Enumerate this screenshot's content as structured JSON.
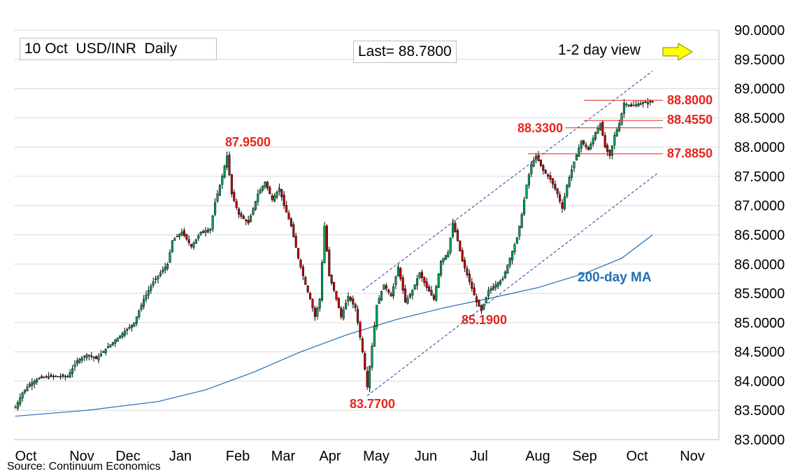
{
  "header": {
    "title": "10 Oct  USD/INR  Daily",
    "last": "Last= 88.7800",
    "view": "1-2 day view"
  },
  "source": "Source: Continuum Economics",
  "colors": {
    "up": "#00a65a",
    "down": "#c00000",
    "ma": "#1f6fb6",
    "channel": "#1f3f9f",
    "levels": "#e8241c",
    "arrow": "#ffff00",
    "grid": "#d9d9d9"
  },
  "icons": {
    "view_arrow": "right-arrow-icon"
  },
  "chart_data": {
    "type": "candlestick",
    "title": "10 Oct  USD/INR  Daily",
    "ylim": [
      83.0,
      90.0
    ],
    "yticks": [
      "90.0000",
      "89.5000",
      "89.0000",
      "88.5000",
      "88.0000",
      "87.5000",
      "87.0000",
      "86.5000",
      "86.0000",
      "85.5000",
      "85.0000",
      "84.5000",
      "84.0000",
      "83.5000",
      "83.0000"
    ],
    "xticks": [
      "Oct",
      "Nov",
      "Dec",
      "Jan",
      "Feb",
      "Mar",
      "Apr",
      "May",
      "Jun",
      "Jul",
      "Aug",
      "Sep",
      "Oct",
      "Nov"
    ],
    "grid": true,
    "anchors": [
      [
        0,
        83.55
      ],
      [
        3,
        83.8
      ],
      [
        6,
        83.95
      ],
      [
        10,
        84.05
      ],
      [
        14,
        84.08
      ],
      [
        22,
        84.08
      ],
      [
        26,
        84.35
      ],
      [
        30,
        84.45
      ],
      [
        34,
        84.38
      ],
      [
        38,
        84.55
      ],
      [
        42,
        84.7
      ],
      [
        46,
        84.85
      ],
      [
        50,
        85.0
      ],
      [
        54,
        85.4
      ],
      [
        58,
        85.7
      ],
      [
        62,
        85.9
      ],
      [
        64,
        86.0
      ],
      [
        66,
        86.4
      ],
      [
        70,
        86.55
      ],
      [
        74,
        86.3
      ],
      [
        78,
        86.55
      ],
      [
        82,
        86.6
      ],
      [
        84,
        87.05
      ],
      [
        87,
        87.5
      ],
      [
        89,
        87.85
      ],
      [
        91,
        87.2
      ],
      [
        94,
        86.85
      ],
      [
        98,
        86.7
      ],
      [
        102,
        87.2
      ],
      [
        105,
        87.4
      ],
      [
        108,
        87.1
      ],
      [
        111,
        87.3
      ],
      [
        113,
        87.0
      ],
      [
        116,
        86.65
      ],
      [
        119,
        86.1
      ],
      [
        122,
        85.65
      ],
      [
        124,
        85.4
      ],
      [
        126,
        85.1
      ],
      [
        128,
        85.4
      ],
      [
        130,
        86.65
      ],
      [
        132,
        85.8
      ],
      [
        134,
        85.55
      ],
      [
        137,
        85.1
      ],
      [
        140,
        85.45
      ],
      [
        143,
        85.25
      ],
      [
        146,
        84.5
      ],
      [
        148,
        83.9
      ],
      [
        150,
        84.6
      ],
      [
        152,
        85.3
      ],
      [
        155,
        85.65
      ],
      [
        158,
        85.45
      ],
      [
        161,
        85.95
      ],
      [
        164,
        85.35
      ],
      [
        167,
        85.55
      ],
      [
        170,
        85.85
      ],
      [
        173,
        85.6
      ],
      [
        176,
        85.4
      ],
      [
        179,
        86.05
      ],
      [
        182,
        86.2
      ],
      [
        184,
        86.7
      ],
      [
        186,
        86.4
      ],
      [
        188,
        86.05
      ],
      [
        191,
        85.7
      ],
      [
        194,
        85.35
      ],
      [
        196,
        85.2
      ],
      [
        199,
        85.55
      ],
      [
        202,
        85.65
      ],
      [
        205,
        85.75
      ],
      [
        208,
        86.1
      ],
      [
        211,
        86.45
      ],
      [
        213,
        86.85
      ],
      [
        215,
        87.35
      ],
      [
        217,
        87.7
      ],
      [
        219,
        87.85
      ],
      [
        222,
        87.6
      ],
      [
        225,
        87.45
      ],
      [
        228,
        87.2
      ],
      [
        230,
        86.95
      ],
      [
        232,
        87.35
      ],
      [
        235,
        87.75
      ],
      [
        238,
        88.1
      ],
      [
        241,
        87.95
      ],
      [
        244,
        88.25
      ],
      [
        246,
        88.4
      ],
      [
        248,
        88.0
      ],
      [
        250,
        87.85
      ],
      [
        252,
        88.2
      ],
      [
        254,
        88.4
      ],
      [
        256,
        88.75
      ],
      [
        259,
        88.7
      ],
      [
        262,
        88.74
      ],
      [
        265,
        88.76
      ],
      [
        268,
        88.78
      ]
    ],
    "days_total": 290,
    "levels": [
      {
        "label": "88.8000",
        "value": 88.8
      },
      {
        "label": "88.4550",
        "value": 88.455
      },
      {
        "label": "88.3300",
        "value": 88.33
      },
      {
        "label": "87.8850",
        "value": 87.885
      }
    ],
    "annotations": [
      {
        "label": "87.9500",
        "value": 87.95
      },
      {
        "label": "83.7700",
        "value": 83.77
      },
      {
        "label": "85.1900",
        "value": 85.19
      }
    ],
    "moving_average": {
      "label": "200-day MA",
      "points": [
        [
          0,
          83.4
        ],
        [
          30,
          83.5
        ],
        [
          60,
          83.65
        ],
        [
          80,
          83.85
        ],
        [
          100,
          84.15
        ],
        [
          120,
          84.5
        ],
        [
          140,
          84.8
        ],
        [
          160,
          85.05
        ],
        [
          180,
          85.25
        ],
        [
          200,
          85.42
        ],
        [
          220,
          85.6
        ],
        [
          240,
          85.85
        ],
        [
          255,
          86.1
        ],
        [
          268,
          86.5
        ]
      ]
    },
    "channel": {
      "upper": [
        [
          146,
          85.55
        ],
        [
          268,
          89.3
        ]
      ],
      "lower": [
        [
          148,
          83.75
        ],
        [
          270,
          87.55
        ]
      ]
    }
  }
}
